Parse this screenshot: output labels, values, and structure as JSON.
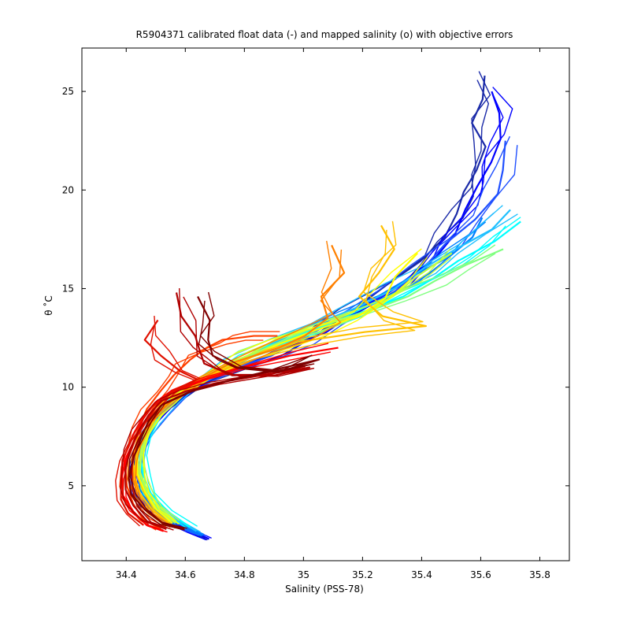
{
  "chart_data": {
    "type": "line",
    "title": "R5904371 calibrated float data (-) and mapped salinity (o) with objective errors",
    "xlabel": "Salinity (PSS-78)",
    "ylabel": "θ ˚C",
    "xlim": [
      34.25,
      35.9
    ],
    "ylim": [
      1.2,
      27.2
    ],
    "xticks": [
      34.4,
      34.6,
      34.8,
      35,
      35.2,
      35.4,
      35.6,
      35.8
    ],
    "xtick_labels": [
      "34.4",
      "34.6",
      "34.8",
      "35",
      "35.2",
      "35.4",
      "35.6",
      "35.8"
    ],
    "yticks": [
      5,
      10,
      15,
      20,
      25
    ],
    "ytick_labels": [
      "5",
      "10",
      "15",
      "20",
      "25"
    ],
    "grid": false,
    "colormap": [
      "#00008f",
      "#0000ff",
      "#0080ff",
      "#00ffff",
      "#80ff80",
      "#ffff00",
      "#ff8000",
      "#ff0000",
      "#800000"
    ],
    "series": [
      {
        "color": "#1a2aa8",
        "points": [
          [
            35.6,
            25.8
          ],
          [
            35.62,
            24.6
          ],
          [
            35.58,
            23.4
          ],
          [
            35.6,
            22.2
          ],
          [
            35.58,
            21.0
          ],
          [
            35.56,
            19.9
          ],
          [
            35.52,
            18.8
          ],
          [
            35.46,
            17.6
          ],
          [
            35.4,
            16.4
          ],
          [
            35.3,
            15.2
          ],
          [
            35.15,
            13.8
          ],
          [
            35.02,
            12.6
          ],
          [
            34.92,
            11.8
          ],
          [
            34.8,
            11.0
          ],
          [
            34.66,
            10.2
          ],
          [
            34.55,
            9.0
          ],
          [
            34.48,
            8.0
          ],
          [
            34.44,
            7.0
          ],
          [
            34.42,
            6.0
          ],
          [
            34.42,
            5.0
          ],
          [
            34.45,
            4.0
          ],
          [
            34.52,
            3.2
          ],
          [
            34.62,
            2.6
          ],
          [
            34.67,
            2.3
          ]
        ]
      },
      {
        "color": "#0000ff",
        "points": [
          [
            35.64,
            25.0
          ],
          [
            35.68,
            23.9
          ],
          [
            35.66,
            22.6
          ],
          [
            35.62,
            21.4
          ],
          [
            35.6,
            20.2
          ],
          [
            35.56,
            19.0
          ],
          [
            35.5,
            17.8
          ],
          [
            35.44,
            16.6
          ],
          [
            35.35,
            15.3
          ],
          [
            35.2,
            14.0
          ],
          [
            35.06,
            12.8
          ],
          [
            34.95,
            12.0
          ],
          [
            34.82,
            11.2
          ],
          [
            34.68,
            10.4
          ],
          [
            34.56,
            9.2
          ],
          [
            34.49,
            8.1
          ],
          [
            34.45,
            7.0
          ],
          [
            34.43,
            6.0
          ],
          [
            34.43,
            5.0
          ],
          [
            34.46,
            4.1
          ],
          [
            34.53,
            3.3
          ],
          [
            34.62,
            2.7
          ],
          [
            34.68,
            2.3
          ]
        ]
      },
      {
        "color": "#2050ff",
        "points": [
          [
            35.7,
            22.5
          ],
          [
            35.68,
            21.0
          ],
          [
            35.64,
            19.8
          ],
          [
            35.58,
            18.5
          ],
          [
            35.5,
            17.3
          ],
          [
            35.4,
            16.0
          ],
          [
            35.28,
            14.7
          ],
          [
            35.12,
            13.4
          ],
          [
            35.0,
            12.4
          ],
          [
            34.88,
            11.6
          ],
          [
            34.74,
            10.8
          ],
          [
            34.6,
            9.8
          ],
          [
            34.52,
            8.6
          ],
          [
            34.47,
            7.6
          ],
          [
            34.44,
            6.6
          ],
          [
            34.43,
            5.6
          ],
          [
            34.44,
            4.6
          ],
          [
            34.48,
            3.8
          ],
          [
            34.56,
            3.0
          ],
          [
            34.65,
            2.5
          ]
        ]
      },
      {
        "color": "#0080ff",
        "points": [
          [
            35.62,
            18.6
          ],
          [
            35.56,
            17.6
          ],
          [
            35.48,
            16.6
          ],
          [
            35.38,
            15.6
          ],
          [
            35.26,
            14.6
          ],
          [
            35.12,
            13.6
          ],
          [
            35.0,
            12.7
          ],
          [
            34.86,
            11.8
          ],
          [
            34.72,
            10.9
          ],
          [
            34.6,
            9.8
          ],
          [
            34.53,
            8.8
          ],
          [
            34.48,
            7.8
          ],
          [
            34.45,
            6.8
          ],
          [
            34.44,
            5.8
          ],
          [
            34.45,
            4.8
          ],
          [
            34.49,
            3.9
          ],
          [
            34.57,
            3.1
          ],
          [
            34.66,
            2.5
          ]
        ]
      },
      {
        "color": "#20c0ff",
        "points": [
          [
            35.7,
            19.0
          ],
          [
            35.62,
            18.0
          ],
          [
            35.52,
            17.0
          ],
          [
            35.42,
            16.0
          ],
          [
            35.3,
            15.0
          ],
          [
            35.16,
            14.0
          ],
          [
            35.02,
            13.0
          ],
          [
            34.9,
            12.2
          ],
          [
            34.76,
            11.2
          ],
          [
            34.64,
            10.2
          ],
          [
            34.56,
            9.2
          ],
          [
            34.5,
            8.2
          ],
          [
            34.46,
            7.2
          ],
          [
            34.45,
            6.2
          ],
          [
            34.46,
            5.2
          ],
          [
            34.49,
            4.3
          ],
          [
            34.56,
            3.4
          ],
          [
            34.64,
            2.7
          ]
        ]
      },
      {
        "color": "#00ffff",
        "points": [
          [
            35.72,
            18.4
          ],
          [
            35.64,
            17.4
          ],
          [
            35.54,
            16.4
          ],
          [
            35.44,
            15.5
          ],
          [
            35.32,
            14.6
          ],
          [
            35.2,
            13.8
          ],
          [
            35.06,
            13.0
          ],
          [
            34.92,
            12.2
          ],
          [
            34.78,
            11.4
          ],
          [
            34.66,
            10.5
          ],
          [
            34.57,
            9.5
          ],
          [
            34.5,
            8.5
          ],
          [
            34.47,
            7.5
          ],
          [
            34.45,
            6.5
          ],
          [
            34.46,
            5.5
          ],
          [
            34.48,
            4.6
          ],
          [
            34.54,
            3.7
          ],
          [
            34.62,
            2.9
          ]
        ]
      },
      {
        "color": "#80ff80",
        "points": [
          [
            35.66,
            17.0
          ],
          [
            35.56,
            16.2
          ],
          [
            35.46,
            15.4
          ],
          [
            35.34,
            14.6
          ],
          [
            35.22,
            13.9
          ],
          [
            35.08,
            13.2
          ],
          [
            34.94,
            12.4
          ],
          [
            34.8,
            11.6
          ],
          [
            34.68,
            10.7
          ],
          [
            34.58,
            9.7
          ],
          [
            34.51,
            8.7
          ],
          [
            34.47,
            7.7
          ],
          [
            34.45,
            6.7
          ],
          [
            34.45,
            5.7
          ],
          [
            34.46,
            4.8
          ],
          [
            34.5,
            3.9
          ],
          [
            34.57,
            3.1
          ]
        ]
      },
      {
        "color": "#c0ff40",
        "points": [
          [
            35.5,
            16.8
          ],
          [
            35.4,
            15.6
          ],
          [
            35.3,
            14.6
          ],
          [
            35.2,
            13.8
          ],
          [
            35.06,
            13.1
          ],
          [
            34.92,
            12.4
          ],
          [
            34.8,
            11.6
          ],
          [
            34.68,
            10.7
          ],
          [
            34.58,
            9.7
          ],
          [
            34.51,
            8.7
          ],
          [
            34.47,
            7.7
          ],
          [
            34.45,
            6.7
          ],
          [
            34.45,
            5.7
          ],
          [
            34.47,
            4.8
          ],
          [
            34.51,
            3.9
          ],
          [
            34.57,
            3.2
          ]
        ]
      },
      {
        "color": "#ffff00",
        "points": [
          [
            35.4,
            16.8
          ],
          [
            35.32,
            15.6
          ],
          [
            35.26,
            14.5
          ],
          [
            35.18,
            13.6
          ],
          [
            35.06,
            12.9
          ],
          [
            34.92,
            12.2
          ],
          [
            34.8,
            11.5
          ],
          [
            34.68,
            10.6
          ],
          [
            34.57,
            9.6
          ],
          [
            34.5,
            8.6
          ],
          [
            34.46,
            7.6
          ],
          [
            34.44,
            6.6
          ],
          [
            34.44,
            5.6
          ],
          [
            34.46,
            4.7
          ],
          [
            34.5,
            3.8
          ],
          [
            34.56,
            3.1
          ]
        ]
      },
      {
        "color": "#ffc000",
        "points": [
          [
            35.28,
            18.2
          ],
          [
            35.3,
            17.0
          ],
          [
            35.24,
            15.8
          ],
          [
            35.2,
            14.6
          ],
          [
            35.28,
            13.6
          ],
          [
            35.4,
            13.1
          ],
          [
            35.2,
            12.8
          ],
          [
            35.0,
            12.3
          ],
          [
            34.84,
            11.6
          ],
          [
            34.7,
            10.7
          ],
          [
            34.58,
            9.6
          ],
          [
            34.5,
            8.6
          ],
          [
            34.46,
            7.5
          ],
          [
            34.43,
            6.5
          ],
          [
            34.43,
            5.5
          ],
          [
            34.45,
            4.6
          ],
          [
            34.49,
            3.7
          ],
          [
            34.55,
            3.0
          ]
        ]
      },
      {
        "color": "#ff8000",
        "points": [
          [
            35.1,
            17.2
          ],
          [
            35.12,
            15.8
          ],
          [
            35.06,
            14.6
          ],
          [
            35.1,
            13.5
          ],
          [
            35.0,
            12.6
          ],
          [
            34.9,
            12.0
          ],
          [
            34.76,
            11.2
          ],
          [
            34.64,
            10.3
          ],
          [
            34.55,
            9.3
          ],
          [
            34.48,
            8.3
          ],
          [
            34.44,
            7.3
          ],
          [
            34.42,
            6.3
          ],
          [
            34.42,
            5.3
          ],
          [
            34.44,
            4.4
          ],
          [
            34.48,
            3.6
          ],
          [
            34.55,
            2.9
          ]
        ]
      },
      {
        "color": "#ff4000",
        "points": [
          [
            34.9,
            12.6
          ],
          [
            34.82,
            12.6
          ],
          [
            34.74,
            12.4
          ],
          [
            34.68,
            12.0
          ],
          [
            34.6,
            11.4
          ],
          [
            34.56,
            10.6
          ],
          [
            34.52,
            9.8
          ],
          [
            34.47,
            8.9
          ],
          [
            34.44,
            8.0
          ],
          [
            34.42,
            7.0
          ],
          [
            34.4,
            6.0
          ],
          [
            34.4,
            5.0
          ],
          [
            34.42,
            4.1
          ],
          [
            34.46,
            3.3
          ],
          [
            34.52,
            2.8
          ]
        ]
      },
      {
        "color": "#ff0000",
        "points": [
          [
            35.1,
            12.0
          ],
          [
            34.96,
            11.6
          ],
          [
            34.8,
            11.0
          ],
          [
            34.66,
            10.4
          ],
          [
            34.56,
            9.8
          ],
          [
            34.5,
            9.2
          ],
          [
            34.46,
            8.4
          ],
          [
            34.43,
            7.5
          ],
          [
            34.4,
            6.5
          ],
          [
            34.39,
            5.5
          ],
          [
            34.39,
            4.5
          ],
          [
            34.42,
            3.7
          ],
          [
            34.47,
            3.0
          ],
          [
            34.53,
            2.7
          ]
        ]
      },
      {
        "color": "#e01000",
        "points": [
          [
            34.5,
            13.4
          ],
          [
            34.48,
            12.4
          ],
          [
            34.52,
            11.6
          ],
          [
            34.58,
            10.8
          ],
          [
            34.64,
            10.4
          ],
          [
            34.56,
            9.8
          ],
          [
            34.5,
            9.0
          ],
          [
            34.46,
            8.2
          ],
          [
            34.42,
            7.3
          ],
          [
            34.39,
            6.3
          ],
          [
            34.38,
            5.3
          ],
          [
            34.38,
            4.3
          ],
          [
            34.41,
            3.6
          ],
          [
            34.46,
            3.0
          ]
        ]
      },
      {
        "color": "#b00000",
        "points": [
          [
            34.58,
            14.8
          ],
          [
            34.6,
            13.6
          ],
          [
            34.62,
            12.6
          ],
          [
            34.64,
            11.8
          ],
          [
            34.68,
            11.2
          ],
          [
            34.76,
            10.6
          ],
          [
            34.9,
            10.6
          ],
          [
            35.02,
            11.0
          ],
          [
            34.86,
            10.6
          ],
          [
            34.7,
            10.2
          ],
          [
            34.6,
            9.8
          ],
          [
            34.52,
            9.3
          ],
          [
            34.48,
            8.6
          ],
          [
            34.44,
            7.8
          ],
          [
            34.41,
            6.8
          ],
          [
            34.4,
            5.8
          ],
          [
            34.4,
            4.8
          ],
          [
            34.42,
            4.0
          ],
          [
            34.47,
            3.2
          ],
          [
            34.54,
            2.8
          ]
        ]
      },
      {
        "color": "#800000",
        "points": [
          [
            34.66,
            14.6
          ],
          [
            34.68,
            13.4
          ],
          [
            34.66,
            12.4
          ],
          [
            34.7,
            11.6
          ],
          [
            34.78,
            11.0
          ],
          [
            34.92,
            10.8
          ],
          [
            35.04,
            11.4
          ],
          [
            34.88,
            10.8
          ],
          [
            34.74,
            10.3
          ],
          [
            34.62,
            9.8
          ],
          [
            34.52,
            9.1
          ],
          [
            34.48,
            8.3
          ],
          [
            34.45,
            7.4
          ],
          [
            34.42,
            6.4
          ],
          [
            34.41,
            5.4
          ],
          [
            34.42,
            4.6
          ],
          [
            34.46,
            3.8
          ],
          [
            34.52,
            3.1
          ],
          [
            34.6,
            2.8
          ]
        ]
      }
    ]
  }
}
